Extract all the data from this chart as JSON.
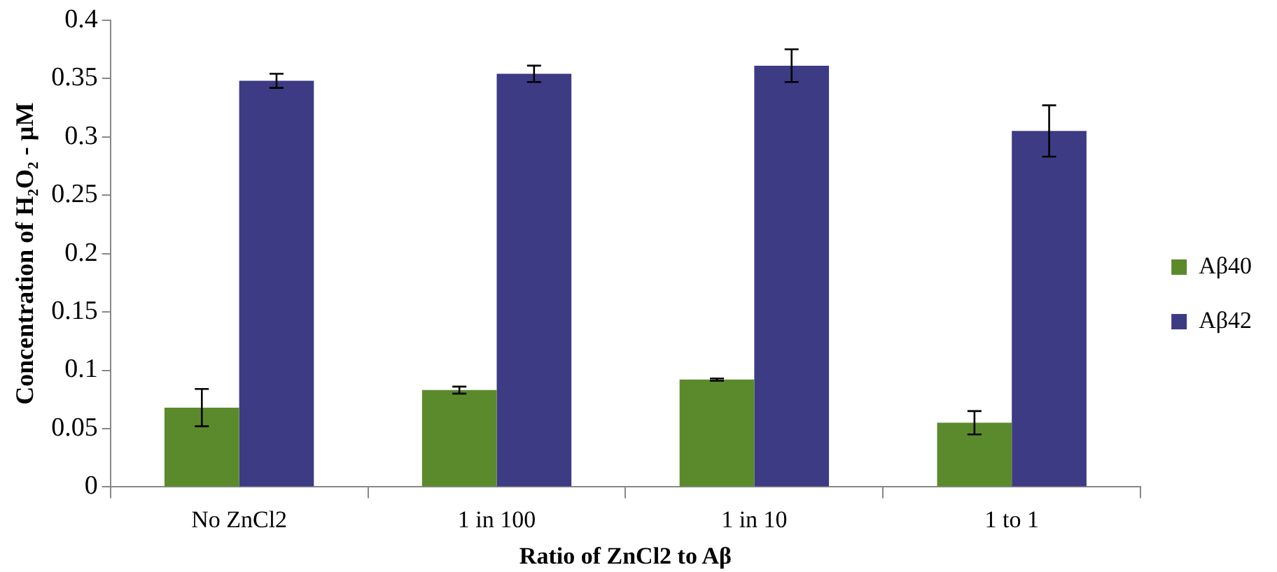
{
  "chart_data": {
    "type": "bar",
    "xlabel": "Ratio of ZnCl2 to Aβ",
    "ylabel": "Concentration of H₂O₂ - µM",
    "categories": [
      "No ZnCl2",
      "1 in 100",
      "1 in 10",
      "1 to 1"
    ],
    "series": [
      {
        "name": "Aβ40",
        "color": "#5b8a2c",
        "values": [
          0.068,
          0.083,
          0.092,
          0.055
        ],
        "errors": [
          0.016,
          0.003,
          0.001,
          0.01
        ]
      },
      {
        "name": "Aβ42",
        "color": "#3c3b84",
        "values": [
          0.348,
          0.354,
          0.361,
          0.305
        ],
        "errors": [
          0.006,
          0.007,
          0.014,
          0.022
        ]
      }
    ],
    "ylim": [
      0,
      0.4
    ],
    "yticks": [
      0,
      0.05,
      0.1,
      0.15,
      0.2,
      0.25,
      0.3,
      0.35,
      0.4
    ],
    "grid": false,
    "legend": "right"
  }
}
